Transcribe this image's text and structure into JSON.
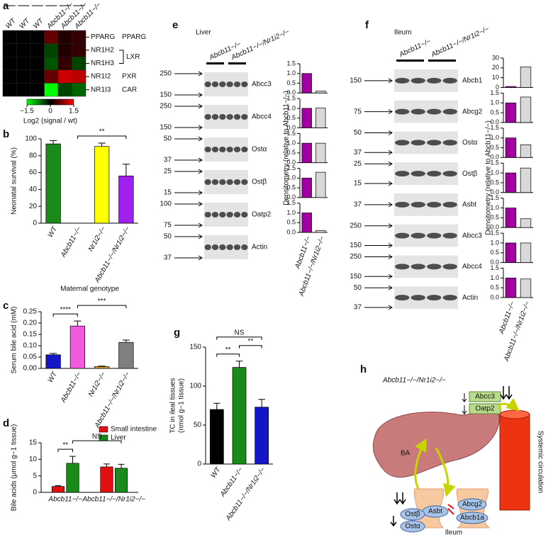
{
  "heatmap": {
    "panel": "a",
    "columns": [
      "WT",
      "WT",
      "WT",
      "Abcb11−/−",
      "Abcb11−/−",
      "Abcb11−/−"
    ],
    "rows": [
      "PPARG",
      "NR1H2",
      "NR1H3",
      "NR1I2",
      "NR1I3"
    ],
    "groups": [
      {
        "label": "PPARG",
        "rows": [
          0
        ]
      },
      {
        "label": "LXR",
        "rows": [
          1,
          2
        ]
      },
      {
        "label": "PXR",
        "rows": [
          3
        ]
      },
      {
        "label": "CAR",
        "rows": [
          4
        ]
      }
    ],
    "values": [
      [
        0,
        0,
        0,
        0.6,
        0.2,
        0.3
      ],
      [
        0,
        0,
        0,
        -0.4,
        0.2,
        0.3
      ],
      [
        0,
        0,
        0,
        -0.5,
        0.3,
        -0.4
      ],
      [
        0,
        0,
        0,
        0.6,
        1.2,
        1.1
      ],
      [
        0,
        0,
        0,
        -1.5,
        -0.4,
        -0.6
      ]
    ],
    "colorbar": {
      "lim": [
        -1.5,
        1.5
      ],
      "ticks": [
        {
          "value": -1.5,
          "label": "−1.5"
        },
        0,
        1.5
      ],
      "label": "Log2 (signal / wt)"
    }
  },
  "chart_data": [
    {
      "panel": "b",
      "type": "bar",
      "ylabel": [
        "Neonatal survival (%)"
      ],
      "xlabel": "Maternal genotype",
      "categories": [
        "WT",
        "Abcb11−/−",
        "Nr1i2−/−",
        "Abcb11−/−/Nr1i2−/−"
      ],
      "values": [
        94,
        0,
        91,
        56
      ],
      "errors": [
        4,
        null,
        4,
        14
      ],
      "colors": [
        "#1a8a1a",
        null,
        "#ffff00",
        "#a020f0"
      ],
      "ylim": [
        0,
        100
      ],
      "yticks": [
        0,
        20,
        40,
        60,
        80,
        100
      ],
      "significance": [
        {
          "between": [
            1,
            3
          ],
          "label": "**"
        }
      ]
    },
    {
      "panel": "c",
      "type": "bar",
      "ylabel": [
        "Serum bile acid (mM)"
      ],
      "categories": [
        "WT",
        "Abcb11−/−",
        "Nr1i2−/−",
        "Abcb11−/−/Nr1i2−/−"
      ],
      "values": [
        0.06,
        0.187,
        0.008,
        0.115
      ],
      "errors": [
        0.006,
        0.022,
        0.002,
        0.01
      ],
      "colors": [
        "#1515c8",
        "#f05adc",
        "#e0a030",
        "#808080"
      ],
      "ylim": [
        0,
        0.25
      ],
      "yticks": [
        {
          "value": 0,
          "label": "0.00"
        },
        {
          "value": 0.05,
          "label": "0.05"
        },
        {
          "value": 0.1,
          "label": "0.10"
        },
        {
          "value": 0.15,
          "label": "0.15"
        },
        {
          "value": 0.2,
          "label": "0.20"
        },
        {
          "value": 0.25,
          "label": "0.25"
        }
      ],
      "significance": [
        {
          "between": [
            0,
            1
          ],
          "label": "****"
        },
        {
          "between": [
            1,
            3
          ],
          "label": "***"
        }
      ]
    },
    {
      "panel": "d",
      "type": "bar",
      "ylabel": [
        "Bile acids (μmol g−1 tissue)"
      ],
      "categories": [
        "Abcb11−/−",
        "Abcb11−/−/Nr1i2−/−"
      ],
      "series": [
        {
          "name": "Small intestine",
          "color": "#e01010",
          "values": [
            1.8,
            7.7
          ],
          "errors": [
            0.2,
            0.9
          ]
        },
        {
          "name": "Liver",
          "color": "#1a8a1a",
          "values": [
            8.8,
            7.3
          ],
          "errors": [
            2.1,
            1.2
          ]
        }
      ],
      "ylim": [
        0,
        15
      ],
      "yticks": [
        0,
        5,
        10,
        15
      ],
      "legend": "upper right",
      "significance": [
        {
          "between": [
            0,
            1
          ],
          "label": "**"
        },
        {
          "between": [
            1,
            3
          ],
          "label": "NS"
        }
      ]
    },
    {
      "type": "bar",
      "ylabel": [
        "Densitometry (relative to Abcb11−/−)"
      ],
      "categories": [
        "Abcb11−/−",
        "Abcb11−/−/Nr1i2−/−"
      ],
      "colors": [
        "#a000a0",
        "#d8d8d8"
      ],
      "subplots": [
        {
          "values": [
            1,
            0.1
          ],
          "ylim": [
            0,
            1.5
          ],
          "yticks": [
            {
              "value": 0,
              "label": "0.0"
            },
            {
              "value": 0.5,
              "label": "0.5"
            },
            {
              "value": 1,
              "label": "1.0"
            },
            {
              "value": 1.5,
              "label": "1.5"
            }
          ]
        },
        {
          "values": [
            1,
            1.02
          ],
          "ylim": [
            0,
            1.5
          ],
          "yticks": [
            {
              "value": 0,
              "label": "0.0"
            },
            {
              "value": 0.5,
              "label": "0.5"
            },
            {
              "value": 1,
              "label": "1.0"
            },
            {
              "value": 1.5,
              "label": "1.5"
            }
          ]
        },
        {
          "values": [
            1,
            1.0
          ],
          "ylim": [
            0,
            1.5
          ],
          "yticks": [
            {
              "value": 0,
              "label": "0.0"
            },
            {
              "value": 0.5,
              "label": "0.5"
            },
            {
              "value": 1,
              "label": "1.0"
            },
            {
              "value": 1.5,
              "label": "1.5"
            }
          ]
        },
        {
          "values": [
            1,
            1.3
          ],
          "ylim": [
            0,
            1.5
          ],
          "yticks": [
            {
              "value": 0,
              "label": "0.0"
            },
            {
              "value": 0.5,
              "label": "0.5"
            },
            {
              "value": 1,
              "label": "1.0"
            },
            {
              "value": 1.5,
              "label": "1.5"
            }
          ]
        },
        {
          "values": [
            1,
            0.1
          ],
          "ylim": [
            0,
            1.5
          ],
          "yticks": [
            {
              "value": 0,
              "label": "0.0"
            },
            {
              "value": 0.5,
              "label": "0.5"
            },
            {
              "value": 1,
              "label": "1.0"
            },
            {
              "value": 1.5,
              "label": "1.5"
            }
          ]
        }
      ]
    },
    {
      "type": "bar",
      "ylabel": [
        "Densitometry (relative to Abcb11−/−)"
      ],
      "categories": [
        "Abcb11−/−",
        "Abcb11−/−/Nr1i2−/−"
      ],
      "colors": [
        "#a000a0",
        "#d8d8d8"
      ],
      "subplots": [
        {
          "values": [
            1,
            21
          ],
          "ylim": [
            0,
            30
          ],
          "yticks": [
            0,
            10,
            20,
            30
          ]
        },
        {
          "values": [
            1,
            1.3
          ],
          "ylim": [
            0,
            1.5
          ],
          "yticks": [
            {
              "value": 0,
              "label": "0.0"
            },
            {
              "value": 0.5,
              "label": "0.5"
            },
            {
              "value": 1,
              "label": "1.0"
            },
            {
              "value": 1.5,
              "label": "1.5"
            }
          ]
        },
        {
          "values": [
            1,
            0.65
          ],
          "ylim": [
            0,
            1.5
          ],
          "yticks": [
            {
              "value": 0,
              "label": "0.0"
            },
            {
              "value": 0.5,
              "label": "0.5"
            },
            {
              "value": 1,
              "label": "1.0"
            },
            {
              "value": 1.5,
              "label": "1.5"
            }
          ]
        },
        {
          "values": [
            1,
            1.25
          ],
          "ylim": [
            0,
            1.5
          ],
          "yticks": [
            {
              "value": 0,
              "label": "0.0"
            },
            {
              "value": 0.5,
              "label": "0.5"
            },
            {
              "value": 1,
              "label": "1.0"
            },
            {
              "value": 1.5,
              "label": "1.5"
            }
          ]
        },
        {
          "values": [
            1,
            0.45
          ],
          "ylim": [
            0,
            1.5
          ],
          "yticks": [
            {
              "value": 0,
              "label": "0.0"
            },
            {
              "value": 0.5,
              "label": "0.5"
            },
            {
              "value": 1,
              "label": "1.0"
            },
            {
              "value": 1.5,
              "label": "1.5"
            }
          ]
        },
        {
          "values": [
            1,
            1.0
          ],
          "ylim": [
            0,
            1.5
          ],
          "yticks": [
            {
              "value": 0,
              "label": "0.0"
            },
            {
              "value": 0.5,
              "label": "0.5"
            },
            {
              "value": 1,
              "label": "1.0"
            },
            {
              "value": 1.5,
              "label": "1.5"
            }
          ]
        },
        {
          "values": [
            1,
            0.95
          ],
          "ylim": [
            0,
            1.5
          ],
          "yticks": [
            {
              "value": 0,
              "label": "0.0"
            },
            {
              "value": 0.5,
              "label": "0.5"
            },
            {
              "value": 1,
              "label": "1.0"
            },
            {
              "value": 1.5,
              "label": "1.5"
            }
          ]
        }
      ]
    },
    {
      "panel": "g",
      "type": "bar",
      "ylabel": [
        "TC in ileal tissues",
        "(nmol g−1 tissue)"
      ],
      "categories": [
        "WT",
        "Abcb11−/−",
        "Abcb11−/−/Nr1i2−/−"
      ],
      "values": [
        70,
        124,
        73
      ],
      "errors": [
        8,
        8,
        10
      ],
      "colors": [
        "#000000",
        "#1a8a1a",
        "#1515c8"
      ],
      "ylim": [
        0,
        150
      ],
      "yticks": [
        0,
        50,
        100,
        150
      ],
      "significance": [
        {
          "between": [
            0,
            1
          ],
          "label": "**"
        },
        {
          "between": [
            1,
            2
          ],
          "label": "**"
        },
        {
          "between": [
            0,
            2
          ],
          "label": "NS"
        }
      ]
    }
  ],
  "blots": [
    {
      "panel": "e",
      "tissue": "Liver",
      "groups": [
        "Abcb11−/−",
        "Abcb11−/−/Nr1i2−/−"
      ],
      "rows": [
        {
          "protein": "Abcc3",
          "markers": [
            250,
            150
          ]
        },
        {
          "protein": "Abcc4",
          "markers": [
            250,
            150
          ]
        },
        {
          "protein": "Ostα",
          "markers": [
            50,
            37
          ]
        },
        {
          "protein": "Ostβ",
          "markers": [
            25,
            15
          ]
        },
        {
          "protein": "Oatp2",
          "markers": [
            100,
            75
          ]
        },
        {
          "protein": "Actin",
          "markers": [
            50,
            37
          ]
        }
      ]
    },
    {
      "panel": "f",
      "tissue": "Ileum",
      "groups": [
        "Abcb11−/−",
        "Abcb11−/−/Nr1i2−/−"
      ],
      "rows": [
        {
          "protein": "Abcb1",
          "markers": [
            150
          ]
        },
        {
          "protein": "Abcg2",
          "markers": [
            75
          ]
        },
        {
          "protein": "Ostα",
          "markers": [
            50,
            37
          ]
        },
        {
          "protein": "Ostβ",
          "markers": [
            25,
            15
          ]
        },
        {
          "protein": "Asbt",
          "markers": [
            37
          ]
        },
        {
          "protein": "Abcc3",
          "markers": [
            250,
            150
          ]
        },
        {
          "protein": "Abcc4",
          "markers": [
            250,
            150
          ]
        },
        {
          "protein": "Actin",
          "markers": [
            50,
            37
          ]
        }
      ]
    }
  ],
  "diagram": {
    "panel": "h",
    "genotype": "Abcb11−/−/Nr1i2−/−",
    "ba": "BA",
    "abcc3": "Abcc3",
    "oatp2": "Oatp2",
    "circulation": "Systemic circulation",
    "abcg2": "Abcg2",
    "abcb1a": "Abcb1a",
    "asbt": "Asbt",
    "ostb": "Ostβ",
    "osta": "Ostα",
    "ileum": "Ileum"
  }
}
